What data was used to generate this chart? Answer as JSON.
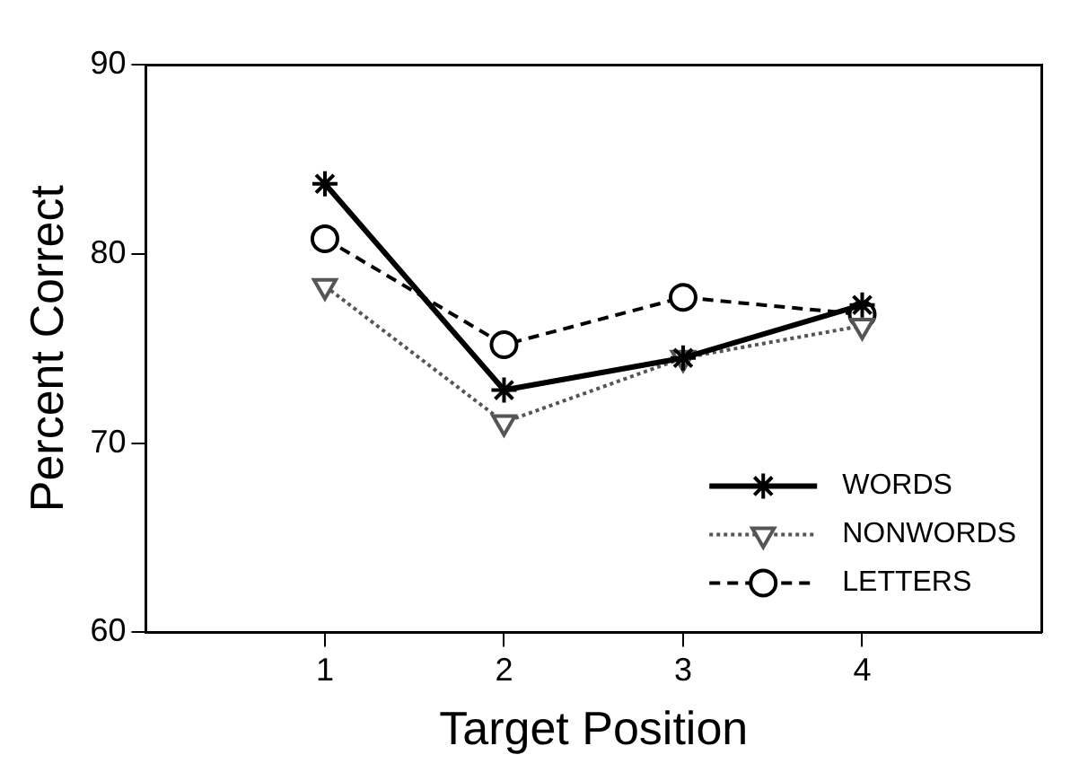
{
  "chart_data": {
    "type": "line",
    "xlabel": "Target Position",
    "ylabel": "Percent Correct",
    "x": [
      1,
      2,
      3,
      4
    ],
    "xlim": [
      0,
      5
    ],
    "xticks": [
      1,
      2,
      3,
      4
    ],
    "ylim": [
      60,
      90
    ],
    "yticks": [
      60,
      70,
      80,
      90
    ],
    "grid": false,
    "legend": "bottom right",
    "series": [
      {
        "name": "WORDS",
        "color": "#000000",
        "marker": "cross",
        "line_style": "solid",
        "values": [
          83.7,
          72.8,
          74.5,
          77.3
        ]
      },
      {
        "name": "NONWORDS",
        "color": "#555555",
        "marker": "triangle",
        "line_style": "dotted",
        "values": [
          78.3,
          71.1,
          74.5,
          76.2
        ]
      },
      {
        "name": "LETTERS",
        "color": "#000000",
        "marker": "circle",
        "line_style": "dashed",
        "values": [
          80.8,
          75.2,
          77.7,
          76.8
        ]
      }
    ]
  }
}
